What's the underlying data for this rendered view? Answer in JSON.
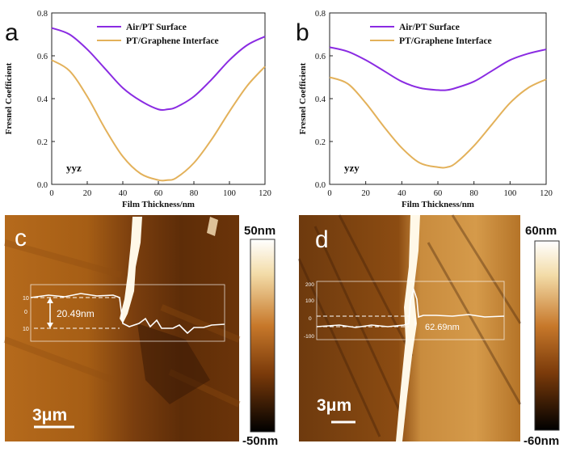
{
  "chart_data": [
    {
      "type": "line",
      "panel_label": "a",
      "xlabel": "Film Thickness/nm",
      "ylabel": "Fresnel Coefficient",
      "xlim": [
        0,
        120
      ],
      "ylim": [
        0.0,
        0.8
      ],
      "xticks": [
        "0",
        "20",
        "40",
        "60",
        "80",
        "100",
        "120"
      ],
      "yticks": [
        "0.0",
        "0.2",
        "0.4",
        "0.6",
        "0.8"
      ],
      "annotation": "yyz",
      "legend_position": "top-right",
      "series": [
        {
          "name": "Air/PT Surface",
          "color": "#8a2be2",
          "x": [
            0,
            10,
            20,
            30,
            40,
            50,
            60,
            65,
            70,
            80,
            90,
            100,
            110,
            120
          ],
          "y": [
            0.73,
            0.7,
            0.63,
            0.54,
            0.45,
            0.39,
            0.35,
            0.35,
            0.36,
            0.41,
            0.49,
            0.58,
            0.65,
            0.69
          ]
        },
        {
          "name": "PT/Graphene Interface",
          "color": "#e3b15a",
          "x": [
            0,
            10,
            20,
            30,
            40,
            50,
            60,
            65,
            70,
            80,
            90,
            100,
            110,
            120
          ],
          "y": [
            0.58,
            0.53,
            0.41,
            0.26,
            0.13,
            0.05,
            0.02,
            0.02,
            0.03,
            0.1,
            0.21,
            0.34,
            0.46,
            0.55
          ]
        }
      ]
    },
    {
      "type": "line",
      "panel_label": "b",
      "xlabel": "Film Thickness/nm",
      "ylabel": "Fresnel Coefficient",
      "xlim": [
        0,
        120
      ],
      "ylim": [
        0.0,
        0.8
      ],
      "xticks": [
        "0",
        "20",
        "40",
        "60",
        "80",
        "100",
        "120"
      ],
      "yticks": [
        "0.0",
        "0.2",
        "0.4",
        "0.6",
        "0.8"
      ],
      "annotation": "yzy",
      "legend_position": "top-right",
      "series": [
        {
          "name": "Air/PT Surface",
          "color": "#8a2be2",
          "x": [
            0,
            10,
            20,
            30,
            40,
            50,
            60,
            65,
            70,
            80,
            90,
            100,
            110,
            120
          ],
          "y": [
            0.64,
            0.62,
            0.58,
            0.53,
            0.48,
            0.45,
            0.44,
            0.44,
            0.45,
            0.48,
            0.53,
            0.58,
            0.61,
            0.63
          ]
        },
        {
          "name": "PT/Graphene Interface",
          "color": "#e3b15a",
          "x": [
            0,
            10,
            20,
            30,
            40,
            50,
            60,
            65,
            70,
            80,
            90,
            100,
            110,
            120
          ],
          "y": [
            0.5,
            0.47,
            0.38,
            0.27,
            0.17,
            0.1,
            0.08,
            0.08,
            0.1,
            0.18,
            0.28,
            0.38,
            0.45,
            0.49
          ]
        }
      ]
    }
  ],
  "afm_c": {
    "panel_label": "c",
    "scale_top": "50nm",
    "scale_bottom": "-50nm",
    "scale_bar": "3μm",
    "profile_ticks": [
      "10",
      "0",
      "10"
    ],
    "height_label": "20.49nm"
  },
  "afm_d": {
    "panel_label": "d",
    "scale_top": "60nm",
    "scale_bottom": "-60nm",
    "scale_bar": "3μm",
    "profile_ticks": [
      "200",
      "100",
      "0",
      "-100"
    ],
    "height_label": "62.69nm"
  },
  "colors": {
    "afm_dark": "#3a1a05",
    "afm_mid": "#a0560f",
    "afm_light": "#fff8e8"
  }
}
